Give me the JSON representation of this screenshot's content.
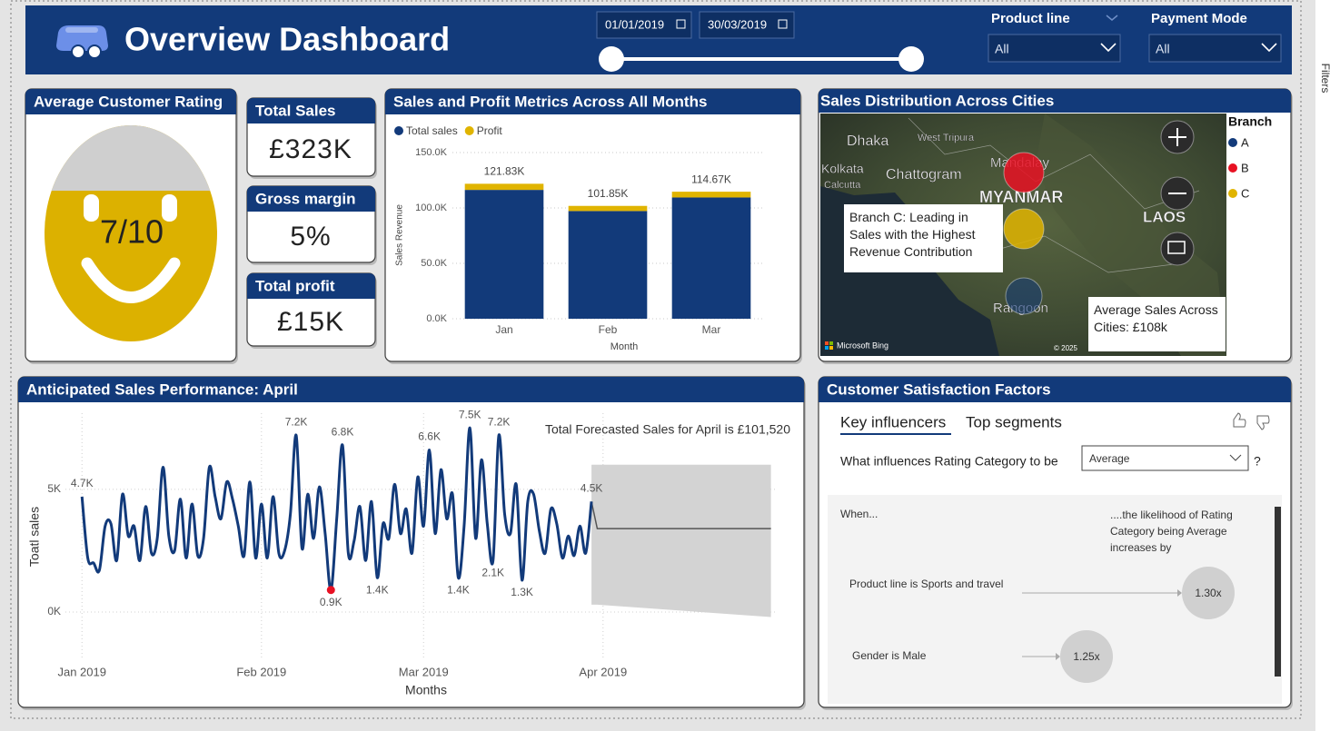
{
  "header": {
    "title": "Overview Dashboard",
    "date_from": "01/01/2019",
    "date_to": "30/03/2019",
    "filters": [
      {
        "label": "Product line",
        "value": "All"
      },
      {
        "label": "Payment Mode",
        "value": "All"
      }
    ]
  },
  "side_panel": "Filters",
  "rating": {
    "title": "Average Customer Rating",
    "value": "7/10"
  },
  "kpis": [
    {
      "title": "Total Sales",
      "value": "£323K"
    },
    {
      "title": "Gross margin",
      "value": "5%"
    },
    {
      "title": "Total profit",
      "value": "£15K"
    }
  ],
  "chart_data": [
    {
      "type": "bar",
      "stacked": true,
      "title": "Sales and Profit Metrics Across All Months",
      "x_label": "Month",
      "y_label": "Sales Revenue",
      "categories": [
        "Jan",
        "Feb",
        "Mar"
      ],
      "series": [
        {
          "name": "Total sales",
          "color": "#123a7a",
          "values": [
            116291.87,
            97219.37,
            109455.51
          ]
        },
        {
          "name": "Profit",
          "color": "#e0b400",
          "values": [
            5537.71,
            4629.49,
            5212.17
          ]
        }
      ],
      "total_labels": [
        "121.83K",
        "101.85K",
        "114.67K"
      ],
      "ylim": [
        0,
        150000
      ],
      "yticks": [
        {
          "value": 0,
          "label": "0.0K"
        },
        {
          "value": 50000,
          "label": "50.0K"
        },
        {
          "value": 100000,
          "label": "100.0K"
        },
        {
          "value": 150000,
          "label": "150.0K"
        }
      ],
      "grid": true
    },
    {
      "type": "line",
      "title": "Anticipated Sales Performance: April",
      "x_label": "Months",
      "y_label": "Toatl sales",
      "annotation": "Total Forecasted Sales for April is £101,520",
      "x": [
        0,
        1,
        2,
        3,
        4,
        5,
        6,
        7,
        8,
        9,
        10,
        11,
        12,
        13,
        14,
        15,
        16,
        17,
        18,
        19,
        20,
        21,
        22,
        23,
        24,
        25,
        26,
        27,
        28,
        29,
        30,
        31,
        32,
        33,
        34,
        35,
        36,
        37,
        38,
        39,
        40,
        41,
        42,
        43,
        44,
        45,
        46,
        47,
        48,
        49,
        50,
        51,
        52,
        53,
        54,
        55,
        56,
        57,
        58,
        59,
        60,
        61,
        62,
        63,
        64,
        65,
        66,
        67,
        68,
        69,
        70,
        71,
        72,
        73,
        74,
        75,
        76,
        77,
        78,
        79,
        80,
        81,
        82,
        83,
        84,
        85,
        86,
        87,
        88
      ],
      "series": [
        {
          "color": "#123a7a",
          "values": [
            4700,
            2200,
            2000,
            1700,
            3500,
            3600,
            2100,
            4800,
            3100,
            3500,
            2100,
            4300,
            2400,
            3000,
            5900,
            3100,
            2500,
            4600,
            2200,
            4400,
            2300,
            3000,
            5900,
            4700,
            3800,
            5300,
            4600,
            3500,
            2300,
            5300,
            2200,
            4400,
            2200,
            4700,
            2400,
            2500,
            4000,
            7200,
            2600,
            4800,
            3000,
            5100,
            3200,
            900,
            3800,
            6800,
            2400,
            2900,
            4300,
            2100,
            4500,
            1400,
            3600,
            3000,
            5200,
            3200,
            4200,
            2400,
            5500,
            3500,
            6600,
            3200,
            5800,
            3800,
            4800,
            1400,
            3500,
            7500,
            3000,
            6200,
            3600,
            2100,
            7200,
            4000,
            3200,
            5200,
            1300,
            4500,
            4800,
            3300,
            2400,
            4200,
            3600,
            2200,
            3100,
            2300,
            3500,
            2400,
            4500
          ],
          "value_labels": [
            "4.7K",
            null,
            null,
            null,
            null,
            null,
            null,
            null,
            null,
            null,
            null,
            null,
            null,
            null,
            null,
            null,
            null,
            null,
            null,
            null,
            null,
            null,
            null,
            null,
            null,
            null,
            null,
            null,
            null,
            null,
            null,
            null,
            null,
            null,
            null,
            null,
            null,
            "7.2K",
            null,
            null,
            null,
            null,
            null,
            "0.9K",
            null,
            "6.8K",
            null,
            null,
            null,
            null,
            null,
            "1.4K",
            null,
            null,
            null,
            null,
            null,
            null,
            null,
            null,
            "6.6K",
            null,
            null,
            null,
            null,
            "1.4K",
            null,
            "7.5K",
            null,
            null,
            null,
            "2.1K",
            "7.2K",
            null,
            null,
            null,
            "1.3K",
            null,
            null,
            null,
            null,
            null,
            null,
            null,
            null,
            null,
            null,
            null,
            "4.5K"
          ]
        }
      ],
      "min_marker_color": "#e81123",
      "forecast": {
        "color": "#d3d3d3",
        "line_color": "#555555",
        "x": [
          88,
          89,
          119
        ],
        "values": [
          4500,
          3400,
          3400
        ],
        "lower": [
          300,
          300,
          -200
        ],
        "upper": [
          6000,
          6000,
          6000
        ]
      },
      "xlim": [
        -6,
        120
      ],
      "xticks": [
        {
          "value": 0,
          "label": "Jan 2019"
        },
        {
          "value": 31,
          "label": "Feb 2019"
        },
        {
          "value": 59,
          "label": "Mar 2019"
        },
        {
          "value": 90,
          "label": "Apr 2019"
        }
      ],
      "ylim": [
        -1700,
        8100
      ],
      "yticks": [
        {
          "value": 0,
          "label": "0K"
        },
        {
          "value": 5000,
          "label": "5K"
        }
      ],
      "grid": true
    }
  ],
  "map": {
    "title": "Sales Distribution Across Cities",
    "place_labels": [
      "Dhaka",
      "West Tripura",
      "Kolkata",
      "Calcutta",
      "Chattogram",
      "Mandalay",
      "MYANMAR",
      "LAOS",
      "Rangoon"
    ],
    "legend_title": "Branch",
    "legend": [
      {
        "name": "A",
        "color": "#123a7a"
      },
      {
        "name": "B",
        "color": "#e81123"
      },
      {
        "name": "C",
        "color": "#e0b400"
      }
    ],
    "callouts": [
      "Branch C: Leading in Sales with the Highest Revenue Contribution",
      "Average Sales Across Cities: £108k"
    ],
    "attribution": "Microsoft Bing",
    "copyright": "© 2025"
  },
  "influencers": {
    "title": "Customer Satisfaction Factors",
    "tabs": [
      "Key influencers",
      "Top segments"
    ],
    "question": "What influences Rating Category to be",
    "selected": "Average",
    "question_mark": "?",
    "when": "When...",
    "likelihood": "....the likelihood of Rating Category being Average increases by",
    "factors": [
      {
        "label": "Product line is Sports and travel",
        "value": "1.30x"
      },
      {
        "label": "Gender is Male",
        "value": "1.25x"
      }
    ]
  }
}
